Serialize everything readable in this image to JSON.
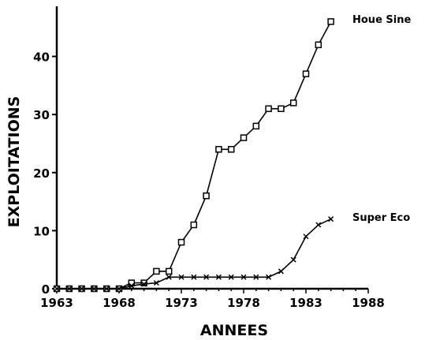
{
  "chart_data": {
    "type": "line",
    "title": "",
    "xlabel": "ANNEES",
    "ylabel": "EXPLOITATIONS",
    "xlim": [
      1963,
      1988
    ],
    "ylim": [
      0,
      47
    ],
    "xticks": [
      1963,
      1968,
      1973,
      1978,
      1983,
      1988
    ],
    "yticks": [
      0,
      10,
      20,
      30,
      40
    ],
    "grid": false,
    "legend": "series labels at line ends",
    "series": [
      {
        "name": "Houe Sine",
        "marker": "square",
        "x": [
          1963,
          1964,
          1965,
          1966,
          1967,
          1968,
          1969,
          1970,
          1971,
          1972,
          1973,
          1974,
          1975,
          1976,
          1977,
          1978,
          1979,
          1980,
          1981,
          1982,
          1983,
          1984,
          1985
        ],
        "values": [
          0,
          0,
          0,
          0,
          0,
          0,
          1,
          1,
          3,
          3,
          8,
          11,
          16,
          24,
          24,
          26,
          28,
          31,
          31,
          32,
          37,
          42,
          46
        ]
      },
      {
        "name": "Super Eco",
        "marker": "x",
        "x": [
          1963,
          1964,
          1965,
          1966,
          1967,
          1968,
          1969,
          1970,
          1971,
          1972,
          1973,
          1974,
          1975,
          1976,
          1977,
          1978,
          1979,
          1980,
          1981,
          1982,
          1983,
          1984,
          1985
        ],
        "values": [
          0,
          0,
          0,
          0,
          0,
          0,
          0.5,
          0.8,
          1,
          2,
          2,
          2,
          2,
          2,
          2,
          2,
          2,
          2,
          3,
          5,
          9,
          11,
          12
        ]
      }
    ]
  }
}
